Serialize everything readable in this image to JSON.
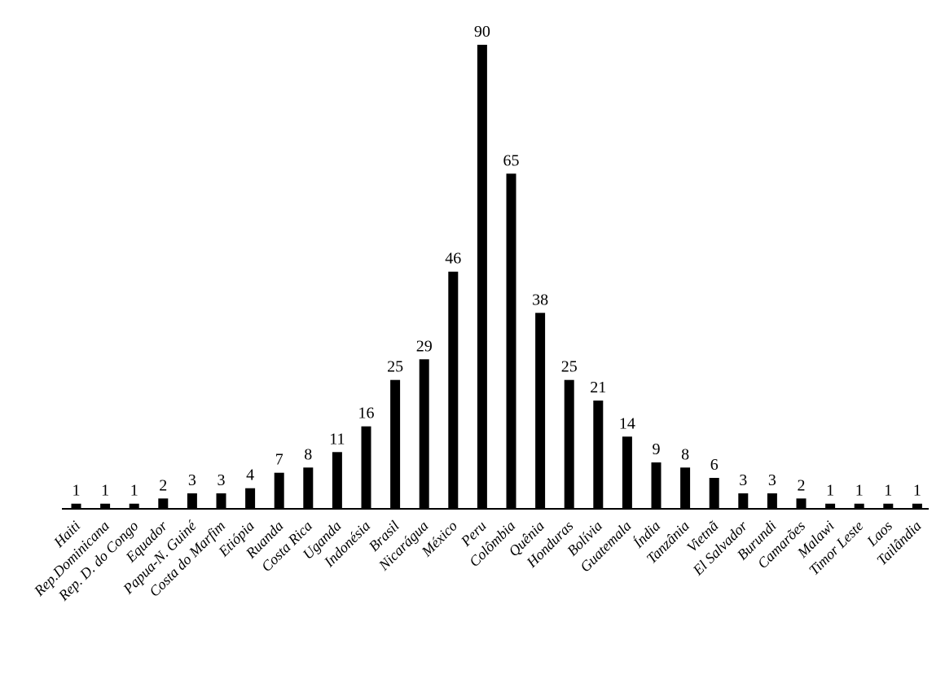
{
  "chart_data": {
    "type": "bar",
    "categories": [
      "Haiti",
      "Rep.Dominicana",
      "Rep. D. do Congo",
      "Equador",
      "Papua-N. Guiné",
      "Costa do Marfim",
      "Etiópia",
      "Ruanda",
      "Costa Rica",
      "Uganda",
      "Indonésia",
      "Brasil",
      "Nicarágua",
      "México",
      "Peru",
      "Colômbia",
      "Quênia",
      "Honduras",
      "Bolívia",
      "Guatemala",
      "Índia",
      "Tanzânia",
      "Vietnã",
      "El Salvador",
      "Burundi",
      "Camarões",
      "Malawi",
      "Timor Leste",
      "Laos",
      "Tailândia"
    ],
    "values": [
      1,
      1,
      1,
      2,
      3,
      3,
      4,
      7,
      8,
      11,
      16,
      25,
      29,
      46,
      90,
      65,
      38,
      25,
      21,
      14,
      9,
      8,
      6,
      3,
      3,
      2,
      1,
      1,
      1,
      1
    ],
    "data_labels": true,
    "grid": false,
    "legend": "none",
    "y_axis_visible": false,
    "x_tick_rotation": "diagonal",
    "ylim": [
      0,
      90
    ],
    "colors": {
      "bar": "#000000",
      "axis": "#000000"
    }
  }
}
